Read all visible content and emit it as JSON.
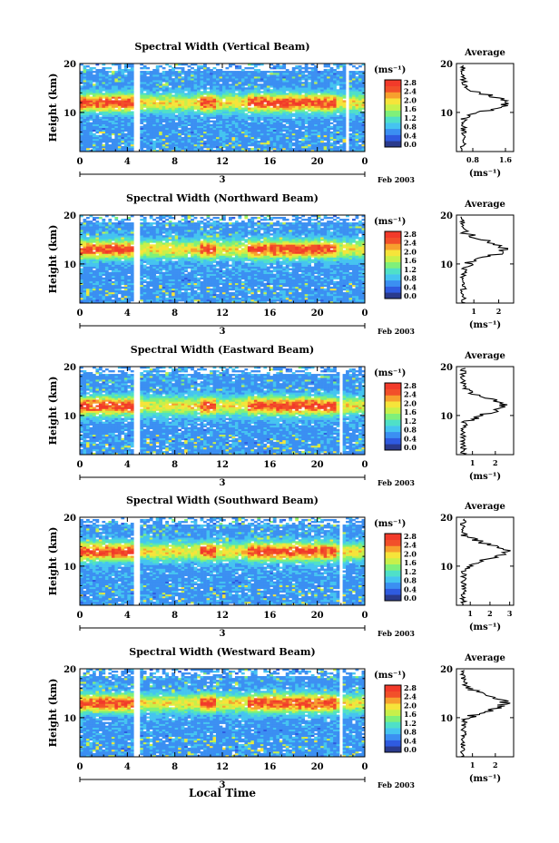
{
  "page": {
    "xaxis_label": "Local Time",
    "date_label": "Feb 2003",
    "day_label": "3",
    "average_title": "Average",
    "unit_label": "(ms⁻¹)",
    "colorbar_ticks": [
      "2.8",
      "2.4",
      "2.0",
      "1.6",
      "1.2",
      "0.8",
      "0.4",
      "0.0"
    ],
    "colors": {
      "palette": [
        "#2a3a8c",
        "#2f5be0",
        "#3b8ff2",
        "#45c4f0",
        "#4fe0c8",
        "#7ff07a",
        "#c8f04a",
        "#f6e43a",
        "#f7a02e",
        "#f2502a",
        "#f23a2a"
      ],
      "background": "#ffffff"
    }
  },
  "chart_data": [
    {
      "type": "heatmap",
      "title": "Spectral Width (Vertical Beam)",
      "ylabel": "Height (km)",
      "xlim": [
        0,
        24
      ],
      "ylim": [
        2,
        20
      ],
      "xticks": [
        "0",
        "4",
        "8",
        "12",
        "16",
        "20",
        "0"
      ],
      "yticks": [
        "20",
        "10"
      ],
      "value_range": [
        0.0,
        3.0
      ],
      "gaps_hours": [
        [
          4.6,
          5.0
        ],
        [
          22.3,
          22.6
        ]
      ],
      "average": {
        "xticks": [
          "0.8",
          "1.6"
        ],
        "xlim": [
          0.4,
          1.8
        ],
        "peak_height_km": 12
      }
    },
    {
      "type": "heatmap",
      "title": "Spectral Width (Northward Beam)",
      "ylabel": "Height (km)",
      "xlim": [
        0,
        24
      ],
      "ylim": [
        2,
        20
      ],
      "xticks": [
        "0",
        "4",
        "8",
        "12",
        "16",
        "20",
        "0"
      ],
      "yticks": [
        "20",
        "10"
      ],
      "value_range": [
        0.0,
        3.0
      ],
      "gaps_hours": [
        [
          4.6,
          5.0
        ]
      ],
      "average": {
        "xticks": [
          "1",
          "2"
        ],
        "xlim": [
          0.3,
          2.6
        ],
        "peak_height_km": 13
      }
    },
    {
      "type": "heatmap",
      "title": "Spectral Width (Eastward Beam)",
      "ylabel": "Height (km)",
      "xlim": [
        0,
        24
      ],
      "ylim": [
        2,
        20
      ],
      "xticks": [
        "0",
        "4",
        "8",
        "12",
        "16",
        "20",
        "0"
      ],
      "yticks": [
        "20",
        "10"
      ],
      "value_range": [
        0.0,
        3.0
      ],
      "gaps_hours": [
        [
          4.6,
          5.0
        ],
        [
          21.8,
          22.1
        ]
      ],
      "average": {
        "xticks": [
          "1",
          "2"
        ],
        "xlim": [
          0.3,
          2.8
        ],
        "peak_height_km": 12
      }
    },
    {
      "type": "heatmap",
      "title": "Spectral Width (Southward Beam)",
      "ylabel": "Height (km)",
      "xlim": [
        0,
        24
      ],
      "ylim": [
        2,
        20
      ],
      "xticks": [
        "0",
        "4",
        "8",
        "12",
        "16",
        "20",
        "0"
      ],
      "yticks": [
        "20",
        "10"
      ],
      "value_range": [
        0.0,
        3.0
      ],
      "gaps_hours": [
        [
          4.6,
          5.0
        ],
        [
          21.8,
          22.1
        ]
      ],
      "average": {
        "xticks": [
          "1",
          "2",
          "3"
        ],
        "xlim": [
          0.3,
          3.2
        ],
        "peak_height_km": 13
      }
    },
    {
      "type": "heatmap",
      "title": "Spectral Width (Westward Beam)",
      "ylabel": "Height (km)",
      "xlim": [
        0,
        24
      ],
      "ylim": [
        2,
        20
      ],
      "xticks": [
        "0",
        "4",
        "8",
        "12",
        "16",
        "20",
        "0"
      ],
      "yticks": [
        "20",
        "10"
      ],
      "value_range": [
        0.0,
        3.0
      ],
      "gaps_hours": [
        [
          4.6,
          5.0
        ],
        [
          21.8,
          22.1
        ]
      ],
      "average": {
        "xticks": [
          "1",
          "2"
        ],
        "xlim": [
          0.3,
          2.8
        ],
        "peak_height_km": 13
      }
    }
  ]
}
